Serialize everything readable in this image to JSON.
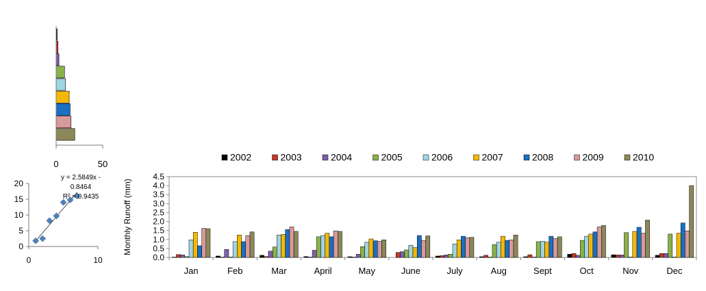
{
  "chart_data": [
    {
      "type": "bar",
      "orientation": "horizontal",
      "values": [
        1,
        2,
        3,
        9,
        10,
        14,
        15,
        16,
        20
      ],
      "xlim": [
        0,
        50
      ],
      "xticks": [
        "0",
        "50"
      ],
      "colors": [
        "#000000",
        "#c0392b",
        "#7d5fa8",
        "#8ab24a",
        "#9fd4e3",
        "#f5b800",
        "#1a6fc4",
        "#d69a9a",
        "#8c875a"
      ]
    },
    {
      "type": "scatter",
      "x": [
        1,
        2,
        3,
        4,
        5,
        6,
        7
      ],
      "y": [
        1.8,
        2.5,
        8.2,
        9.7,
        14.0,
        14.8,
        16.0
      ],
      "xlim": [
        0,
        10
      ],
      "ylim": [
        0,
        20
      ],
      "xticks": [
        "0",
        "10"
      ],
      "yticks": [
        "0",
        "5",
        "10",
        "15",
        "20"
      ],
      "trendline": {
        "slope": 2.5849,
        "intercept": -0.8464
      },
      "annotation_lines": [
        "y = 2.5849x -",
        "0.8464",
        "R² = 0.9435"
      ],
      "marker_color": "#4f81bd"
    },
    {
      "type": "bar",
      "ylabel": "Monthly  Runoff (mm)",
      "ylim": [
        0,
        4.5
      ],
      "yticks": [
        "0.0",
        "0.5",
        "1.0",
        "1.5",
        "2.0",
        "2.5",
        "3.0",
        "3.5",
        "4.0",
        "4.5"
      ],
      "legend_position": "top",
      "categories": [
        "Jan",
        "Feb",
        "Mar",
        "April",
        "May",
        "June",
        "July",
        "Aug",
        "Sept",
        "Oct",
        "Nov",
        "Dec"
      ],
      "series": [
        {
          "name": "2002",
          "color": "#000000",
          "values": [
            0.02,
            0.08,
            0.12,
            0.05,
            0.04,
            0.0,
            0.08,
            0.04,
            0.04,
            0.18,
            0.15,
            0.12
          ]
        },
        {
          "name": "2003",
          "color": "#c0392b",
          "values": [
            0.16,
            0.02,
            0.05,
            0.02,
            0.02,
            0.28,
            0.1,
            0.12,
            0.15,
            0.22,
            0.14,
            0.22
          ]
        },
        {
          "name": "2004",
          "color": "#7d5fa8",
          "values": [
            0.14,
            0.45,
            0.35,
            0.4,
            0.18,
            0.32,
            0.14,
            0.02,
            0.02,
            0.12,
            0.14,
            0.22
          ]
        },
        {
          "name": "2005",
          "color": "#8ab24a",
          "values": [
            0.05,
            0.02,
            0.58,
            1.15,
            0.6,
            0.42,
            0.18,
            0.72,
            0.88,
            0.95,
            1.38,
            1.3
          ]
        },
        {
          "name": "2006",
          "color": "#9fd4e3",
          "values": [
            0.98,
            0.88,
            1.25,
            1.22,
            0.85,
            0.68,
            0.75,
            0.85,
            0.9,
            1.18,
            0.02,
            0.02
          ]
        },
        {
          "name": "2007",
          "color": "#f5b800",
          "values": [
            1.4,
            1.25,
            1.28,
            1.35,
            1.03,
            0.55,
            0.98,
            1.18,
            0.85,
            1.3,
            1.45,
            1.35
          ]
        },
        {
          "name": "2008",
          "color": "#1a6fc4",
          "values": [
            0.65,
            0.88,
            1.55,
            1.15,
            0.93,
            1.22,
            1.18,
            0.95,
            1.18,
            1.42,
            1.68,
            1.92
          ]
        },
        {
          "name": "2009",
          "color": "#d69a9a",
          "values": [
            1.62,
            1.22,
            1.7,
            1.48,
            0.9,
            0.95,
            1.1,
            0.98,
            1.05,
            1.7,
            1.35,
            1.48
          ]
        },
        {
          "name": "2010",
          "color": "#8c875a",
          "values": [
            1.6,
            1.42,
            1.45,
            1.45,
            0.98,
            1.2,
            1.12,
            1.25,
            1.15,
            1.78,
            2.08,
            4.0
          ]
        }
      ]
    }
  ]
}
